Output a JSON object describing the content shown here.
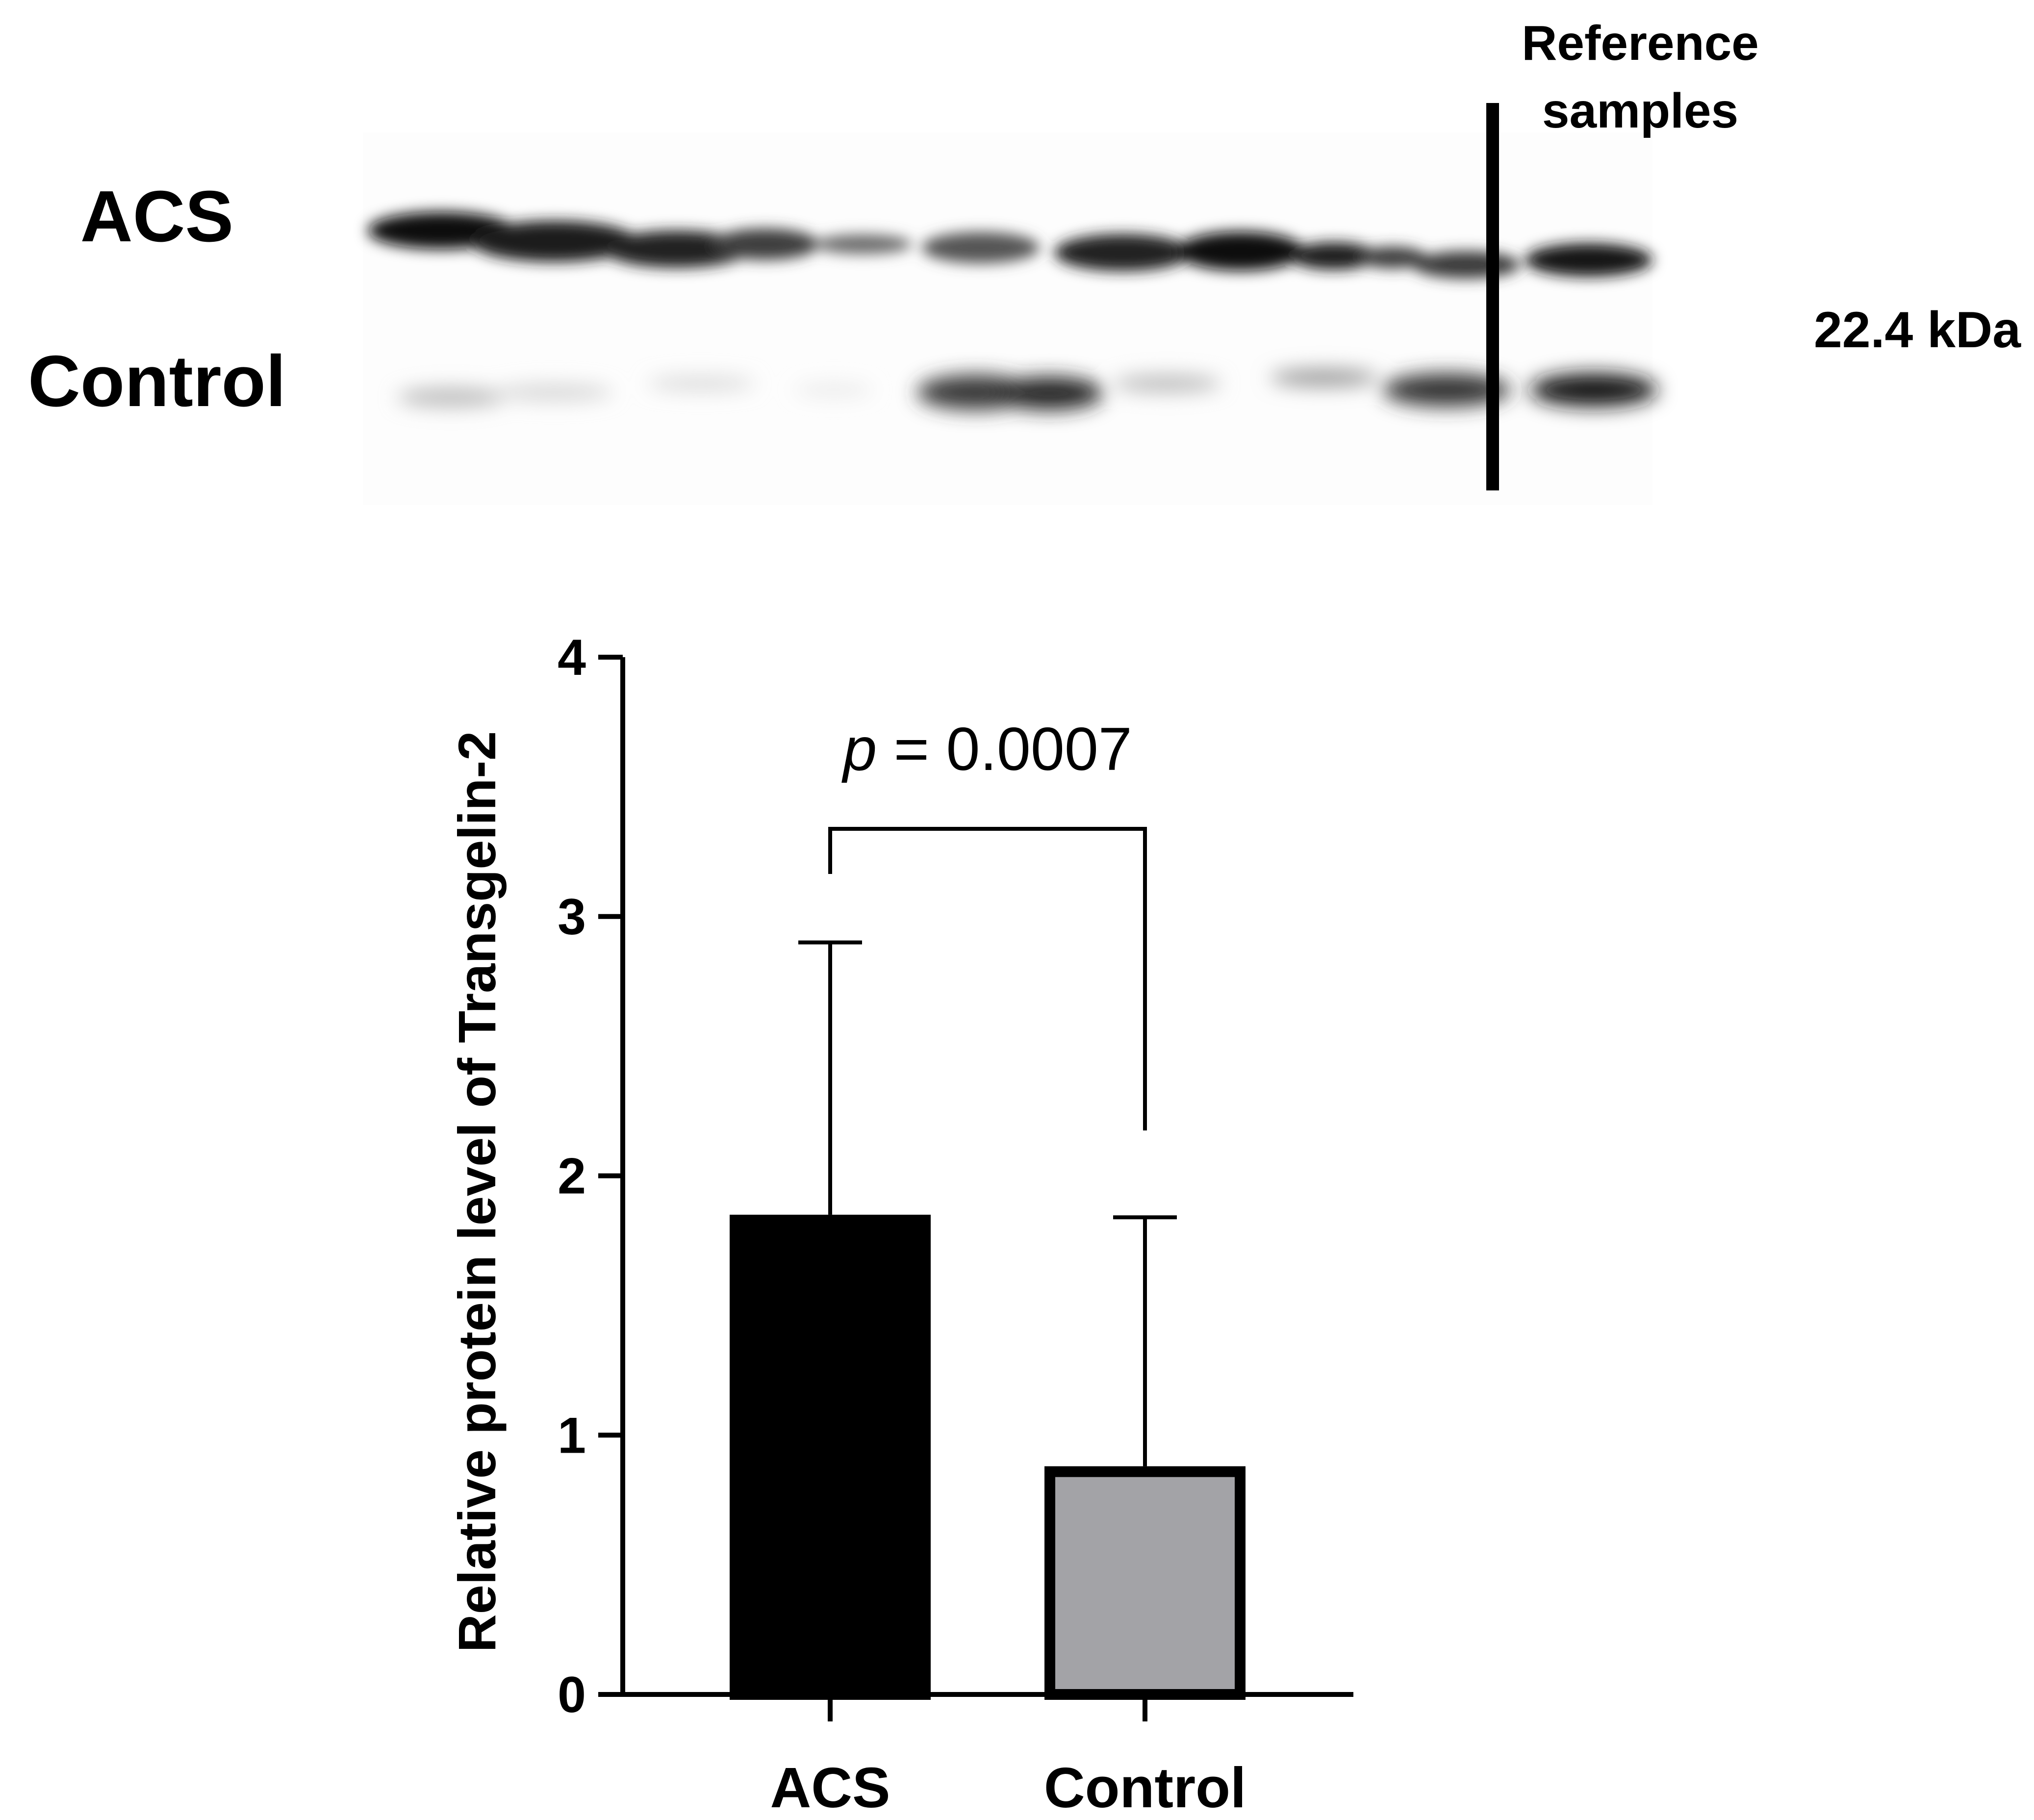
{
  "blot": {
    "row_labels": [
      "ACS",
      "Control"
    ],
    "reference_label_lines": [
      "Reference",
      "samples"
    ],
    "molecular_weight_label": "22.4 kDa"
  },
  "chart_data": {
    "type": "bar",
    "categories": [
      "ACS",
      "Control"
    ],
    "values": [
      1.85,
      0.88
    ],
    "error_upper": [
      2.9,
      1.84
    ],
    "bar_colors": [
      "#000000",
      "#a3a3a7"
    ],
    "ylabel": "Relative protein level of Transgelin-2",
    "xlabel": "",
    "ylim": [
      0,
      4
    ],
    "yticks": [
      "0",
      "1",
      "2",
      "3",
      "4"
    ],
    "grid": false,
    "significance": {
      "p_symbol": "p",
      "p_text": " = 0.0007",
      "between": [
        "ACS",
        "Control"
      ]
    }
  }
}
